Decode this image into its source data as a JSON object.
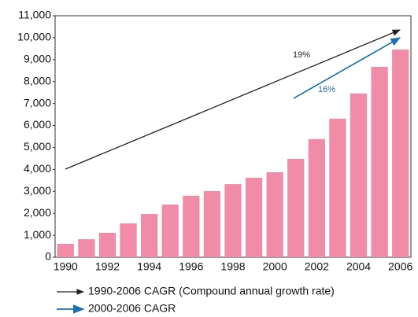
{
  "chart_data": {
    "type": "bar",
    "categories": [
      "1990",
      null,
      "1992",
      null,
      "1994",
      null,
      "1996",
      null,
      "1998",
      null,
      "2000",
      null,
      "2002",
      null,
      "2004",
      null,
      "2006"
    ],
    "values": [
      610,
      820,
      1110,
      1540,
      1970,
      2400,
      2800,
      3010,
      3330,
      3620,
      3870,
      4480,
      5380,
      6310,
      7460,
      8670,
      9460
    ],
    "color": "#f08ca8",
    "ylim": [
      0,
      11000
    ],
    "yticks": [
      0,
      {
        "value": 1000,
        "label": "1,000"
      },
      {
        "value": 2000,
        "label": "2,000"
      },
      {
        "value": 3000,
        "label": "3,000"
      },
      {
        "value": 4000,
        "label": "4,000"
      },
      {
        "value": 5000,
        "label": "5,000"
      },
      {
        "value": 6000,
        "label": "6,000"
      },
      {
        "value": 7000,
        "label": "7,000"
      },
      {
        "value": 8000,
        "label": "8,000"
      },
      {
        "value": 9000,
        "label": "9,000"
      },
      {
        "value": 10000,
        "label": "10,000"
      },
      {
        "value": 11000,
        "label": "11,000"
      }
    ],
    "grid": false,
    "annotations": [
      {
        "text": "19%",
        "color": "#222222"
      },
      {
        "text": "16%",
        "color": "#1a6fb0"
      }
    ],
    "legend": [
      {
        "label": "1990-2006 CAGR (Compound annual growth rate)",
        "color": "#222222"
      },
      {
        "label": "2000-2006 CAGR",
        "color": "#1a6fb0"
      }
    ]
  }
}
